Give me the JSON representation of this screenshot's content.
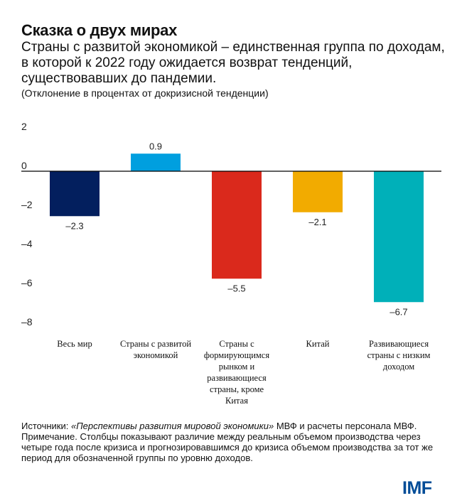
{
  "chart_data": {
    "type": "bar",
    "title": "Сказка о двух мирах",
    "subtitle": "Страны с развитой экономикой – единственная группа по доходам, в которой к 2022 году ожидается возврат тенденций, существовавших до пандемии.",
    "ylabel": "(Отклонение в процентах от докризисной тенденции)",
    "categories": [
      "Весь мир",
      "Страны с развитой экономикой",
      "Страны с формирующимся рынком и развивающиеся страны, кроме Китая",
      "Китай",
      "Развивающиеся страны с низким доходом"
    ],
    "values": [
      -2.3,
      0.9,
      -5.5,
      -2.1,
      -6.7
    ],
    "value_labels": [
      "–2.3",
      "0.9",
      "–5.5",
      "–2.1",
      "–6.7"
    ],
    "colors": [
      "#031f5e",
      "#009fdf",
      "#da291c",
      "#f2ab00",
      "#00b0b9"
    ],
    "ylim": [
      -8,
      2
    ],
    "yticks": [
      2,
      0,
      -2,
      -4,
      -6,
      -8
    ],
    "ytick_labels": [
      "2",
      "0",
      "–2",
      "–4",
      "–6",
      "–8"
    ],
    "grid": false
  },
  "notes": {
    "source_prefix": "Источники: ",
    "source_title": "«Перспективы развития мировой экономики»",
    "source_suffix": " МВФ и расчеты персонала МВФ.",
    "note": "Примечание. Столбцы показывают различие между реальным объемом производства через четыре года после кризиса и прогнозировавшимся до кризиса объемом производства за тот же период для обозначенной группы по уровню доходов."
  },
  "logo": "IMF"
}
